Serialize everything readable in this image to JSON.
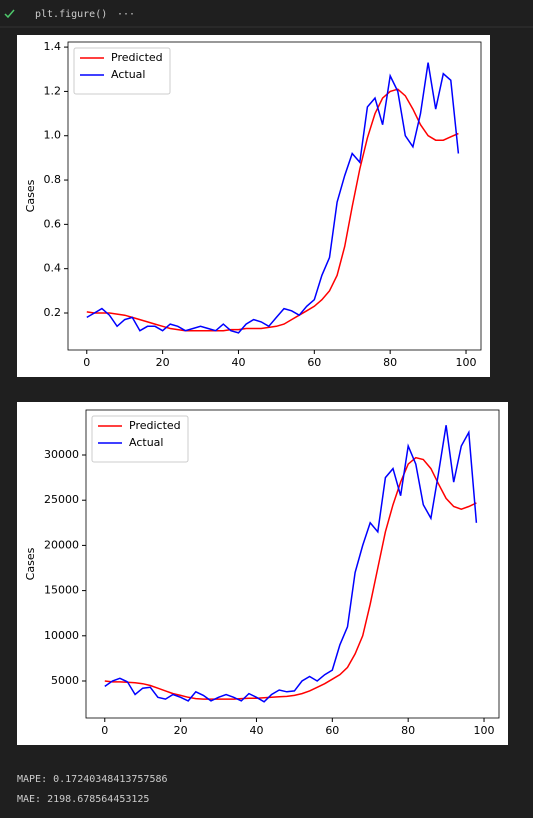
{
  "cell": {
    "code": "plt.figure()",
    "more": "···"
  },
  "chart_data": [
    {
      "type": "line",
      "ylabel": "Cases",
      "legend": "upper left",
      "x": [
        0,
        2,
        4,
        6,
        8,
        10,
        12,
        14,
        16,
        18,
        20,
        22,
        24,
        26,
        28,
        30,
        32,
        34,
        36,
        38,
        40,
        42,
        44,
        46,
        48,
        50,
        52,
        54,
        56,
        58,
        60,
        62,
        64,
        66,
        68,
        70,
        72,
        74,
        76,
        78,
        80,
        82,
        84,
        86,
        88,
        90,
        92,
        94,
        96,
        98
      ],
      "series": [
        {
          "name": "Predicted",
          "color": "#ff0000",
          "values": [
            0.205,
            0.2,
            0.2,
            0.2,
            0.195,
            0.19,
            0.18,
            0.17,
            0.16,
            0.15,
            0.14,
            0.13,
            0.125,
            0.12,
            0.12,
            0.12,
            0.12,
            0.12,
            0.12,
            0.125,
            0.125,
            0.13,
            0.13,
            0.13,
            0.135,
            0.14,
            0.15,
            0.17,
            0.19,
            0.21,
            0.23,
            0.26,
            0.3,
            0.37,
            0.5,
            0.68,
            0.85,
            0.99,
            1.1,
            1.17,
            1.2,
            1.21,
            1.18,
            1.12,
            1.05,
            1.0,
            0.98,
            0.98,
            0.995,
            1.01
          ]
        },
        {
          "name": "Actual",
          "color": "#0000ff",
          "values": [
            0.18,
            0.2,
            0.22,
            0.19,
            0.14,
            0.17,
            0.18,
            0.12,
            0.14,
            0.14,
            0.12,
            0.15,
            0.14,
            0.12,
            0.13,
            0.14,
            0.13,
            0.12,
            0.15,
            0.12,
            0.11,
            0.15,
            0.17,
            0.16,
            0.14,
            0.18,
            0.22,
            0.21,
            0.19,
            0.23,
            0.26,
            0.37,
            0.45,
            0.7,
            0.82,
            0.92,
            0.88,
            1.13,
            1.17,
            1.05,
            1.27,
            1.2,
            1.0,
            0.95,
            1.1,
            1.33,
            1.12,
            1.28,
            1.25,
            0.92
          ]
        }
      ],
      "xlim": [
        -4.95,
        103.95
      ],
      "xticks": [
        0,
        20,
        40,
        60,
        80,
        100
      ],
      "ylim": [
        0.033,
        1.423
      ],
      "yticks": [
        0.2,
        0.4,
        0.6,
        0.8,
        {
          "value": 1,
          "label": "1.0"
        },
        1.2,
        1.4
      ]
    },
    {
      "type": "line",
      "ylabel": "Cases",
      "legend": "upper left",
      "x": [
        0,
        2,
        4,
        6,
        8,
        10,
        12,
        14,
        16,
        18,
        20,
        22,
        24,
        26,
        28,
        30,
        32,
        34,
        36,
        38,
        40,
        42,
        44,
        46,
        48,
        50,
        52,
        54,
        56,
        58,
        60,
        62,
        64,
        66,
        68,
        70,
        72,
        74,
        76,
        78,
        80,
        82,
        84,
        86,
        88,
        90,
        92,
        94,
        96,
        98
      ],
      "series": [
        {
          "name": "Predicted",
          "color": "#ff0000",
          "values": [
            5000,
            4900,
            4900,
            4850,
            4800,
            4700,
            4500,
            4200,
            3900,
            3600,
            3400,
            3200,
            3050,
            3000,
            3000,
            3000,
            3000,
            3000,
            3050,
            3100,
            3100,
            3150,
            3200,
            3250,
            3300,
            3400,
            3600,
            3900,
            4300,
            4700,
            5200,
            5700,
            6500,
            8000,
            10000,
            13500,
            17500,
            21500,
            24500,
            27000,
            29000,
            29700,
            29500,
            28500,
            26800,
            25200,
            24300,
            24000,
            24300,
            24700
          ]
        },
        {
          "name": "Actual",
          "color": "#0000ff",
          "values": [
            4400,
            5000,
            5300,
            4900,
            3500,
            4200,
            4300,
            3200,
            3000,
            3500,
            3200,
            2800,
            3800,
            3400,
            2800,
            3200,
            3500,
            3200,
            2800,
            3600,
            3200,
            2700,
            3500,
            4000,
            3800,
            3900,
            5000,
            5500,
            5000,
            5700,
            6200,
            9000,
            11000,
            17000,
            20000,
            22500,
            21500,
            27500,
            28500,
            25500,
            31000,
            29000,
            24500,
            23000,
            28000,
            33300,
            27000,
            31000,
            32500,
            22500
          ]
        }
      ],
      "xlim": [
        -4.95,
        103.95
      ],
      "xticks": [
        0,
        20,
        40,
        60,
        80,
        100
      ],
      "ylim": [
        905,
        34980
      ],
      "yticks": [
        5000,
        10000,
        15000,
        20000,
        25000,
        30000
      ]
    }
  ],
  "output": [
    "MAPE: 0.17240348413757586",
    "MAE: 2198.678564453125"
  ]
}
